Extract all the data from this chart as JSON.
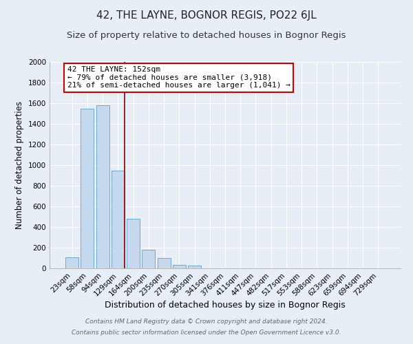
{
  "title": "42, THE LAYNE, BOGNOR REGIS, PO22 6JL",
  "subtitle": "Size of property relative to detached houses in Bognor Regis",
  "xlabel": "Distribution of detached houses by size in Bognor Regis",
  "ylabel": "Number of detached properties",
  "bar_color": "#c5d8ee",
  "bar_edge_color": "#6aaad4",
  "bg_color": "#e8eef5",
  "grid_color": "#ffffff",
  "annotation_box_color": "#ffffff",
  "annotation_border_color": "#cc0000",
  "vline_color": "#8b0000",
  "categories": [
    "23sqm",
    "58sqm",
    "94sqm",
    "129sqm",
    "164sqm",
    "200sqm",
    "235sqm",
    "270sqm",
    "305sqm",
    "341sqm",
    "376sqm",
    "411sqm",
    "447sqm",
    "482sqm",
    "517sqm",
    "553sqm",
    "588sqm",
    "623sqm",
    "659sqm",
    "694sqm",
    "729sqm"
  ],
  "values": [
    110,
    1545,
    1580,
    950,
    480,
    180,
    100,
    35,
    25,
    0,
    0,
    0,
    0,
    0,
    0,
    0,
    0,
    0,
    0,
    0,
    0
  ],
  "vline_x": 3.42,
  "annotation_title": "42 THE LAYNE: 152sqm",
  "annotation_line1": "← 79% of detached houses are smaller (3,918)",
  "annotation_line2": "21% of semi-detached houses are larger (1,041) →",
  "ylim": [
    0,
    2000
  ],
  "yticks": [
    0,
    200,
    400,
    600,
    800,
    1000,
    1200,
    1400,
    1600,
    1800,
    2000
  ],
  "footer_line1": "Contains HM Land Registry data © Crown copyright and database right 2024.",
  "footer_line2": "Contains public sector information licensed under the Open Government Licence v3.0.",
  "title_fontsize": 11,
  "subtitle_fontsize": 9.5,
  "xlabel_fontsize": 9,
  "ylabel_fontsize": 8.5,
  "tick_fontsize": 7.5,
  "annotation_fontsize": 8,
  "footer_fontsize": 6.5
}
